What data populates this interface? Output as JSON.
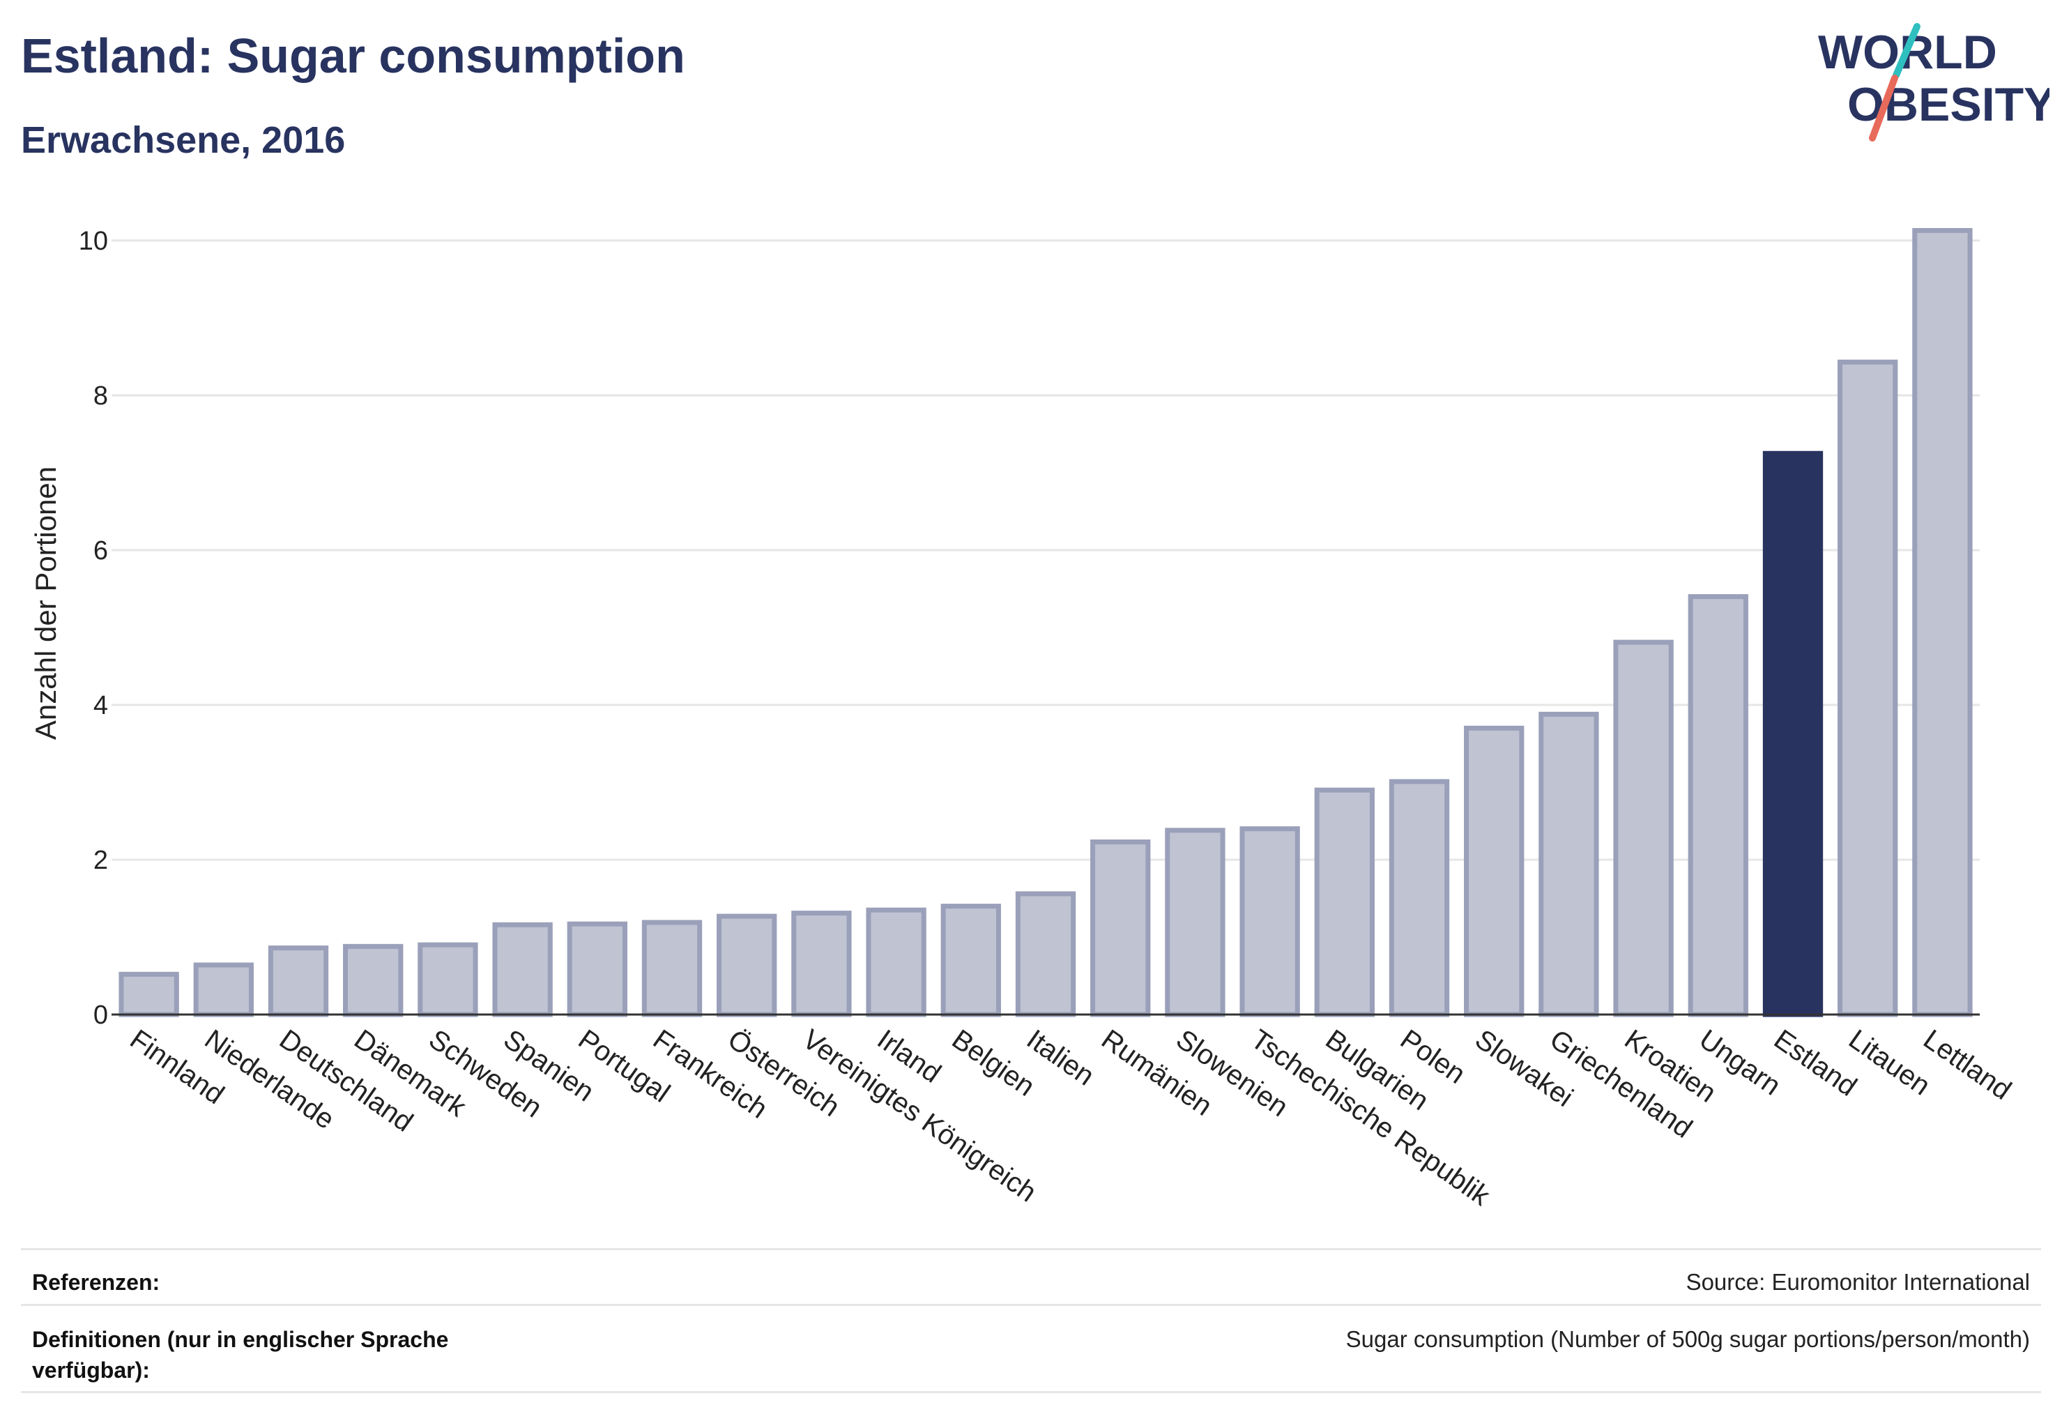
{
  "header": {
    "title": "Estland: Sugar consumption",
    "subtitle": "Erwachsene, 2016"
  },
  "logo": {
    "line1": "WORLD",
    "line2": "OBESITY"
  },
  "footer": {
    "references_label": "Referenzen:",
    "references_value": "Source: Euromonitor International",
    "definitions_label_line1": "Definitionen (nur in englischer Sprache",
    "definitions_label_line2": "verfügbar):",
    "definitions_value": "Sugar consumption (Number of 500g sugar portions/person/month)"
  },
  "colors": {
    "highlight": "#283360",
    "bar_fill": "#bfc3d2",
    "bar_stroke": "#9aa0b9",
    "grid": "#e6e6e6",
    "logo_teal": "#2fbfbf",
    "logo_coral": "#e86a5a"
  },
  "chart_data": {
    "type": "bar",
    "title": "Estland: Sugar consumption",
    "subtitle": "Erwachsene, 2016",
    "xlabel": "",
    "ylabel": "Anzahl der Portionen",
    "ylim": [
      0,
      10.6
    ],
    "yticks": [
      0,
      2,
      4,
      6,
      8,
      10
    ],
    "grid": true,
    "highlight": "Estland",
    "categories": [
      "Finnland",
      "Niederlande",
      "Deutschland",
      "Dänemark",
      "Schweden",
      "Spanien",
      "Portugal",
      "Frankreich",
      "Österreich",
      "Vereinigtes Königreich",
      "Irland",
      "Belgien",
      "Italien",
      "Rumänien",
      "Slowenien",
      "Tschechische Republik",
      "Bulgarien",
      "Polen",
      "Slowakei",
      "Griechenland",
      "Kroatien",
      "Ungarn",
      "Estland",
      "Litauen",
      "Lettland"
    ],
    "values": [
      0.52,
      0.64,
      0.86,
      0.88,
      0.9,
      1.16,
      1.17,
      1.19,
      1.27,
      1.31,
      1.35,
      1.4,
      1.56,
      2.23,
      2.38,
      2.4,
      2.9,
      3.01,
      3.7,
      3.88,
      4.81,
      5.4,
      7.25,
      8.43,
      10.13
    ]
  }
}
